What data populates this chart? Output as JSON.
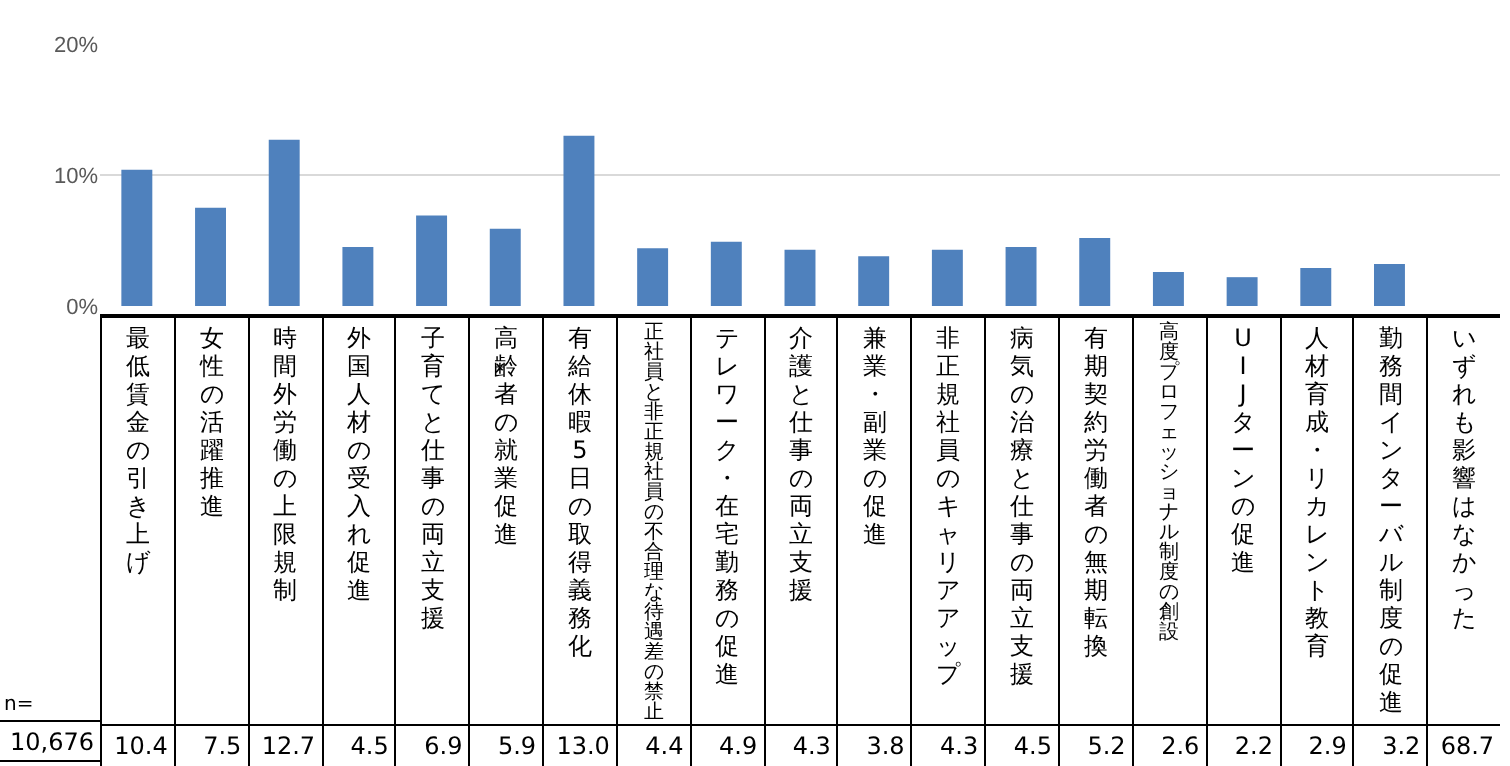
{
  "chart_data": {
    "type": "bar",
    "categories": [
      "最低賃金の引き上げ",
      "女性の活躍推進",
      "時間外労働の上限規制",
      "外国人材の受入れ促進",
      "子育てと仕事の両立支援",
      "高齢者の就業促進",
      "有給休暇5日の取得義務化",
      "正社員と非正規社員の不合理な待遇差の禁止",
      "テレワーク・在宅勤務の促進",
      "介護と仕事の両立支援",
      "兼業・副業の促進",
      "非正規社員のキャリアアップ",
      "病気の治療と仕事の両立支援",
      "有期契約労働者の無期転換",
      "高度プロフェッショナル制度の創設",
      "UIJターンの促進",
      "人材育成・リカレント教育",
      "勤務間インターバル制度の促進",
      "いずれも影響はなかった"
    ],
    "values": [
      10.4,
      7.5,
      12.7,
      4.5,
      6.9,
      5.9,
      13.0,
      4.4,
      4.9,
      4.3,
      3.8,
      4.3,
      4.5,
      5.2,
      2.6,
      2.2,
      2.9,
      3.2,
      null
    ],
    "value_labels": [
      "10.4",
      "7.5",
      "12.7",
      "4.5",
      "6.9",
      "5.9",
      "13.0",
      "4.4",
      "4.9",
      "4.3",
      "3.8",
      "4.3",
      "4.5",
      "5.2",
      "2.6",
      "2.2",
      "2.9",
      "3.2",
      "68.7"
    ],
    "color": "#4f81bd",
    "ylim": [
      0,
      20
    ],
    "yticks": [
      {
        "value": 0,
        "label": "0%"
      },
      {
        "value": 10,
        "label": "10%"
      },
      {
        "value": 20,
        "label": "20%"
      }
    ],
    "grid": "y",
    "annotations": [
      "n=",
      "10,676"
    ]
  }
}
